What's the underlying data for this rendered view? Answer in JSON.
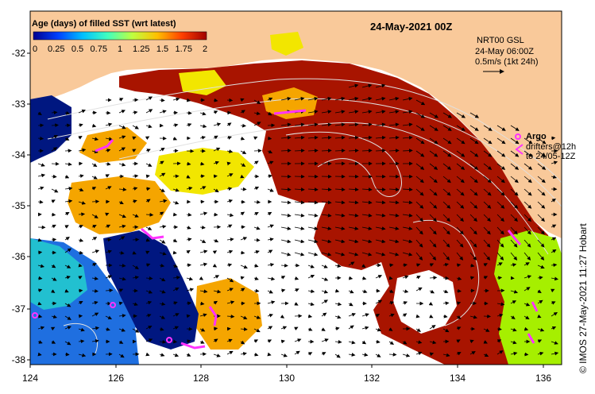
{
  "header": {
    "date_title": "24-May-2021 00Z",
    "colorbar_title": "Age (days) of filled SST (wrt latest)",
    "colorbar_ticks": [
      "0",
      "0.25",
      "0.5",
      "0.75",
      "1",
      "1.25",
      "1.5",
      "1.75",
      "2"
    ]
  },
  "legend": {
    "current_source": "NRT00 GSL",
    "current_time": "24-May 06:00Z",
    "current_scale": "0.5m/s (1kt 24h)",
    "argo_label": "Argo",
    "drifters_label": "drifters@12h",
    "drifters_range": "to 24/05-12Z"
  },
  "credit": "© IMOS 27-May-2021 11:27 Hobart",
  "axes": {
    "x_ticks": [
      "124",
      "126",
      "128",
      "130",
      "132",
      "134",
      "136"
    ],
    "y_ticks": [
      "-32",
      "-33",
      "-34",
      "-35",
      "-36",
      "-37",
      "-38"
    ]
  },
  "colors": {
    "land": "#f9c99a",
    "old": "#a81400",
    "orange": "#f5a500",
    "yellow": "#f2e600",
    "lime": "#a6ef00",
    "navy": "#001780",
    "blue": "#1f6fe0",
    "cyan": "#22c0d0",
    "argo": "#ff33ff"
  },
  "colorbar_gradient": [
    "#00008f",
    "#0040ff",
    "#00c0ff",
    "#40ffbf",
    "#bfff40",
    "#ffc000",
    "#ff4000",
    "#a00000"
  ]
}
